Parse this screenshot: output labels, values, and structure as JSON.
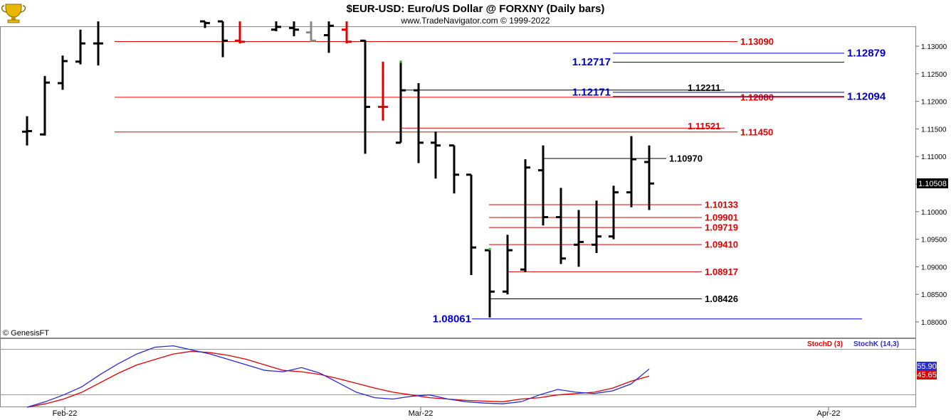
{
  "header": {
    "title": "$EUR-USD:  Euro/US Dollar @ FORXNY  (Daily bars)",
    "subtitle": "www.TradeNavigator.com © 1999-2022"
  },
  "logo": {
    "icon": "trophy-cup-icon"
  },
  "watermark": "© GenesisFT",
  "colors": {
    "bar": "#000000",
    "bar_red": "#e00000",
    "bar_gray": "#888888",
    "level_red": "#e00000",
    "level_blue": "#0000cc",
    "level_black": "#000000",
    "stoch_d": "#e00000",
    "stoch_k": "#2a2ad0"
  },
  "x_labels": [
    "Feb-22",
    "Mar-22",
    "Apr-22"
  ],
  "y_ticks": [
    "1.13000",
    "1.12500",
    "1.12000",
    "1.11500",
    "1.11000",
    "1.10500",
    "1.10000",
    "1.09500",
    "1.09000",
    "1.08500",
    "1.08000"
  ],
  "price_tag": "1.10508",
  "stoch_legend": {
    "d_label": "StochD (3)",
    "k_label": "StochK (14,3)"
  },
  "stoch_tags": {
    "k": "55.90",
    "d": "45.65"
  },
  "level_labels": {
    "r1": "1.13090",
    "b1": "1.12879",
    "b2": "1.12717",
    "k1": "1.12211",
    "b3": "1.12171",
    "r2": "1.12080",
    "b4": "1.12094",
    "r3": "1.11521",
    "r4": "1.11450",
    "k2": "1.10970",
    "r5": "1.10133",
    "r6": "1.09901",
    "r7": "1.09719",
    "r8": "1.09410",
    "r9": "1.08917",
    "k3": "1.08426",
    "b5": "1.08061"
  },
  "chart_data": [
    {
      "type": "ohlc",
      "title": "$EUR-USD:  Euro/US Dollar @ FORXNY  (Daily bars)",
      "y_axis_range": [
        1.0795,
        1.1345
      ],
      "bars": [
        {
          "date": "2022-01-31",
          "o": 1.1145,
          "h": 1.1173,
          "l": 1.112,
          "c": 1.1146
        },
        {
          "date": "2022-02-01",
          "o": 1.114,
          "h": 1.1246,
          "l": 1.1138,
          "c": 1.1234
        },
        {
          "date": "2022-02-02",
          "o": 1.1233,
          "h": 1.1283,
          "l": 1.1221,
          "c": 1.1273
        },
        {
          "date": "2022-02-03",
          "o": 1.1272,
          "h": 1.133,
          "l": 1.1267,
          "c": 1.1305
        },
        {
          "date": "2022-02-04",
          "o": 1.1305,
          "h": 1.1345,
          "l": 1.1265,
          "c": 1.1305
        },
        {
          "date": "2022-02-09",
          "o": 1.1345,
          "h": 1.1345,
          "l": 1.1333,
          "c": 1.1342
        },
        {
          "date": "2022-02-10",
          "o": 1.1345,
          "h": 1.1345,
          "l": 1.128,
          "c": 1.131
        },
        {
          "date": "2022-02-11",
          "o": 1.131,
          "h": 1.1345,
          "l": 1.1305,
          "c": 1.1308,
          "color": "red"
        },
        {
          "date": "2022-02-14",
          "o": 1.133,
          "h": 1.1345,
          "l": 1.1327,
          "c": 1.1335
        },
        {
          "date": "2022-02-15",
          "o": 1.1333,
          "h": 1.1345,
          "l": 1.1318,
          "c": 1.133
        },
        {
          "date": "2022-02-16",
          "o": 1.1325,
          "h": 1.1345,
          "l": 1.1308,
          "c": 1.131,
          "color": "gray"
        },
        {
          "date": "2022-02-17",
          "o": 1.132,
          "h": 1.1345,
          "l": 1.1288,
          "c": 1.1337
        },
        {
          "date": "2022-02-18",
          "o": 1.133,
          "h": 1.1345,
          "l": 1.1305,
          "c": 1.1308,
          "color": "red"
        },
        {
          "date": "2022-02-21",
          "o": 1.131,
          "h": 1.1311,
          "l": 1.1105,
          "c": 1.119
        },
        {
          "date": "2022-02-22",
          "o": 1.119,
          "h": 1.1272,
          "l": 1.1165,
          "c": 1.119,
          "color": "red"
        },
        {
          "date": "2022-02-23",
          "o": 1.1125,
          "h": 1.1272,
          "l": 1.1125,
          "c": 1.122
        },
        {
          "date": "2022-02-24",
          "o": 1.122,
          "h": 1.1233,
          "l": 1.1088,
          "c": 1.1125
        },
        {
          "date": "2022-02-25",
          "o": 1.1125,
          "h": 1.1145,
          "l": 1.106,
          "c": 1.112
        },
        {
          "date": "2022-02-28",
          "o": 1.112,
          "h": 1.112,
          "l": 1.1033,
          "c": 1.1067
        },
        {
          "date": "2022-03-01",
          "o": 1.1067,
          "h": 1.1067,
          "l": 1.0885,
          "c": 1.0935
        },
        {
          "date": "2022-03-02",
          "o": 1.093,
          "h": 1.0932,
          "l": 1.0808,
          "c": 1.0855
        },
        {
          "date": "2022-03-03",
          "o": 1.0855,
          "h": 1.0958,
          "l": 1.085,
          "c": 1.093
        },
        {
          "date": "2022-03-04",
          "o": 1.0895,
          "h": 1.1095,
          "l": 1.089,
          "c": 1.108
        },
        {
          "date": "2022-03-07",
          "o": 1.1075,
          "h": 1.112,
          "l": 1.0975,
          "c": 1.099
        },
        {
          "date": "2022-03-08",
          "o": 1.099,
          "h": 1.1043,
          "l": 1.0905,
          "c": 1.0915
        },
        {
          "date": "2022-03-09",
          "o": 1.094,
          "h": 1.1003,
          "l": 1.09,
          "c": 1.0945
        },
        {
          "date": "2022-03-10",
          "o": 1.094,
          "h": 1.102,
          "l": 1.0925,
          "c": 1.0955
        },
        {
          "date": "2022-03-11",
          "o": 1.0955,
          "h": 1.1047,
          "l": 1.095,
          "c": 1.1035
        },
        {
          "date": "2022-03-14",
          "o": 1.1035,
          "h": 1.1137,
          "l": 1.1008,
          "c": 1.1095
        },
        {
          "date": "2022-03-15",
          "o": 1.109,
          "h": 1.112,
          "l": 1.1003,
          "c": 1.1051
        }
      ]
    },
    {
      "type": "line",
      "title": "Stochastic",
      "y_axis_range": [
        0,
        100
      ],
      "series": [
        {
          "name": "StochD (3)",
          "values": [
            0,
            5,
            12,
            22,
            36,
            50,
            62,
            70,
            78,
            82,
            80,
            76,
            70,
            62,
            54,
            52,
            48,
            42,
            35,
            28,
            22,
            18,
            14,
            12,
            10,
            9,
            8,
            12,
            14,
            18,
            20,
            22,
            28,
            38,
            45.65
          ]
        },
        {
          "name": "StochK (14,3)",
          "values": [
            0,
            8,
            18,
            30,
            48,
            64,
            78,
            88,
            90,
            84,
            78,
            70,
            62,
            54,
            52,
            58,
            50,
            36,
            22,
            14,
            12,
            16,
            18,
            12,
            8,
            6,
            5,
            8,
            18,
            26,
            22,
            20,
            24,
            34,
            55.9
          ]
        }
      ]
    }
  ]
}
